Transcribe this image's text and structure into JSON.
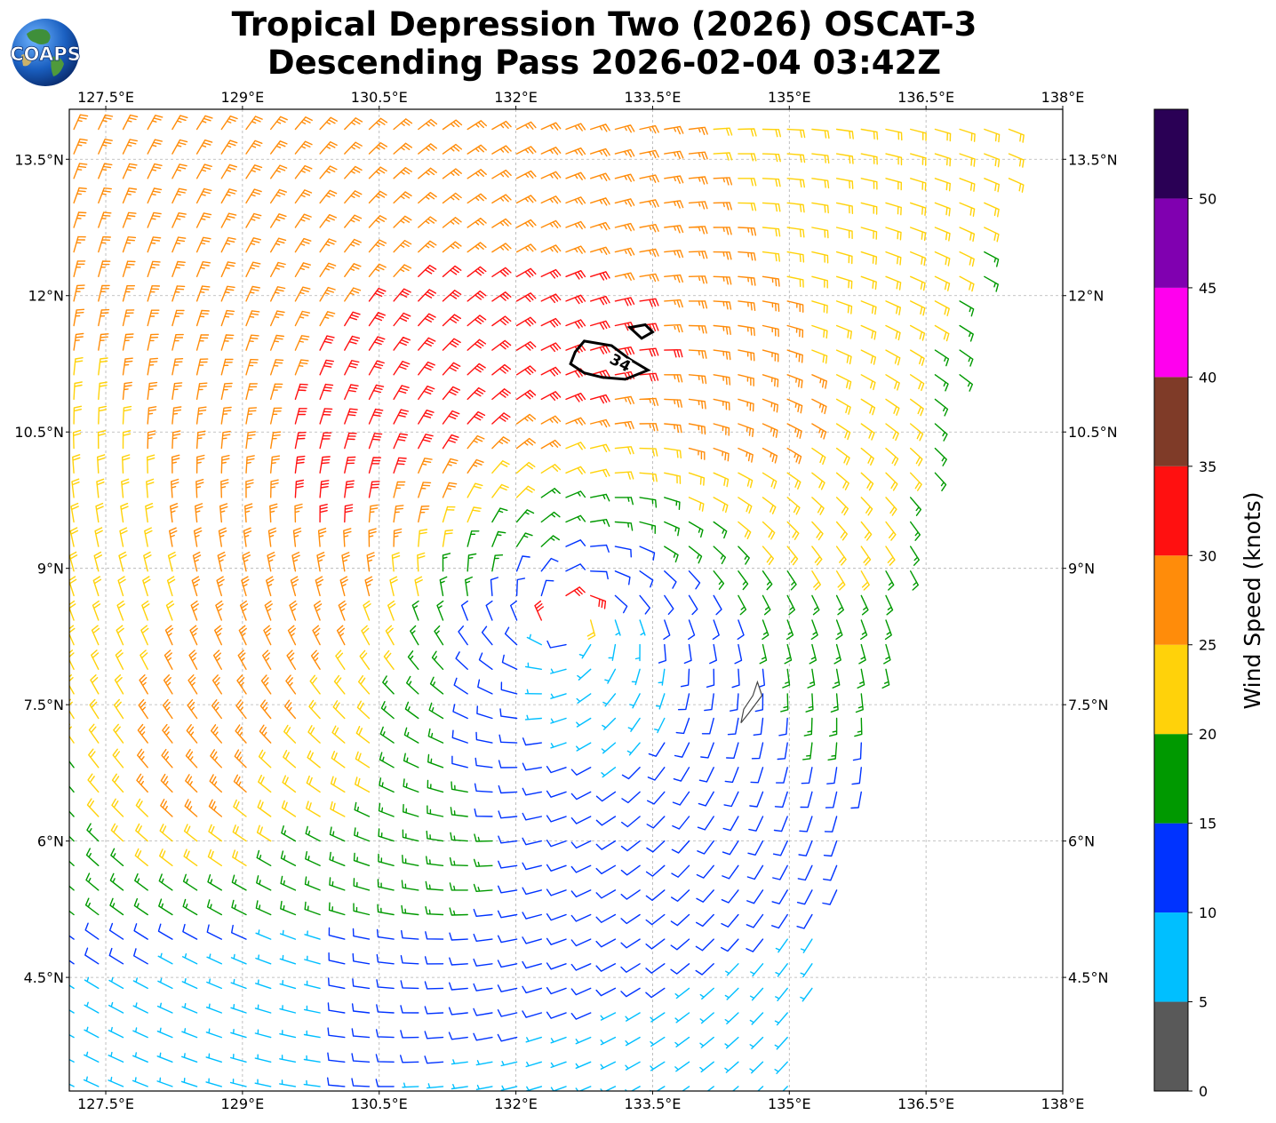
{
  "header": {
    "title_line1": "Tropical Depression Two (2026) OSCAT-3",
    "title_line2": "Descending Pass 2026-02-04 03:42Z",
    "logo_text": "COAPS"
  },
  "map": {
    "lon_range": [
      127.1,
      138.0
    ],
    "lat_range": [
      3.25,
      14.05
    ],
    "lon_ticks": [
      {
        "value": 127.5,
        "label": "127.5°E"
      },
      {
        "value": 129.0,
        "label": "129°E"
      },
      {
        "value": 130.5,
        "label": "130.5°E"
      },
      {
        "value": 132.0,
        "label": "132°E"
      },
      {
        "value": 133.5,
        "label": "133.5°E"
      },
      {
        "value": 135.0,
        "label": "135°E"
      },
      {
        "value": 136.5,
        "label": "136.5°E"
      },
      {
        "value": 138.0,
        "label": "138°E"
      }
    ],
    "lat_ticks": [
      {
        "value": 4.5,
        "label": "4.5°N"
      },
      {
        "value": 6.0,
        "label": "6°N"
      },
      {
        "value": 7.5,
        "label": "7.5°N"
      },
      {
        "value": 9.0,
        "label": "9°N"
      },
      {
        "value": 10.5,
        "label": "10.5°N"
      },
      {
        "value": 12.0,
        "label": "12°N"
      },
      {
        "value": 13.5,
        "label": "13.5°N"
      }
    ],
    "gridlines": true,
    "storm_center": {
      "lon": 132.6,
      "lat": 8.45
    },
    "swath_edge": [
      {
        "lon": 135.0,
        "lat": 3.25
      },
      {
        "lon": 137.6,
        "lat": 14.05
      }
    ],
    "wind_contour_label": "34",
    "wind_contour_34kt": [
      {
        "lon": 132.75,
        "lat": 11.5
      },
      {
        "lon": 133.05,
        "lat": 11.45
      },
      {
        "lon": 133.25,
        "lat": 11.3
      },
      {
        "lon": 133.45,
        "lat": 11.18
      },
      {
        "lon": 133.2,
        "lat": 11.08
      },
      {
        "lon": 132.95,
        "lat": 11.1
      },
      {
        "lon": 132.75,
        "lat": 11.15
      },
      {
        "lon": 132.6,
        "lat": 11.25
      },
      {
        "lon": 132.65,
        "lat": 11.38
      }
    ],
    "wind_contour_34kt_small": [
      {
        "lon": 133.25,
        "lat": 11.65
      },
      {
        "lon": 133.42,
        "lat": 11.68
      },
      {
        "lon": 133.5,
        "lat": 11.6
      },
      {
        "lon": 133.38,
        "lat": 11.53
      }
    ],
    "island": [
      {
        "lon": 134.65,
        "lat": 7.75
      },
      {
        "lon": 134.7,
        "lat": 7.6
      },
      {
        "lon": 134.55,
        "lat": 7.4
      },
      {
        "lon": 134.47,
        "lat": 7.3
      },
      {
        "lon": 134.5,
        "lat": 7.45
      },
      {
        "lon": 134.6,
        "lat": 7.6
      }
    ]
  },
  "colorbar": {
    "label": "Wind Speed (knots)",
    "range": [
      0,
      55
    ],
    "bands": [
      {
        "from": 0,
        "to": 5,
        "color": "#595959"
      },
      {
        "from": 5,
        "to": 10,
        "color": "#00bfff"
      },
      {
        "from": 10,
        "to": 15,
        "color": "#0033ff"
      },
      {
        "from": 15,
        "to": 20,
        "color": "#009900"
      },
      {
        "from": 20,
        "to": 25,
        "color": "#ffd20a"
      },
      {
        "from": 25,
        "to": 30,
        "color": "#ff8c0a"
      },
      {
        "from": 30,
        "to": 35,
        "color": "#ff1010"
      },
      {
        "from": 35,
        "to": 40,
        "color": "#7f3b28"
      },
      {
        "from": 40,
        "to": 45,
        "color": "#ff00ee"
      },
      {
        "from": 45,
        "to": 50,
        "color": "#8000b0"
      },
      {
        "from": 50,
        "to": 55,
        "color": "#2a0055"
      }
    ],
    "ticks": [
      {
        "value": 0,
        "label": "0"
      },
      {
        "value": 5,
        "label": "5"
      },
      {
        "value": 10,
        "label": "10"
      },
      {
        "value": 15,
        "label": "15"
      },
      {
        "value": 20,
        "label": "20"
      },
      {
        "value": 25,
        "label": "25"
      },
      {
        "value": 30,
        "label": "30"
      },
      {
        "value": 35,
        "label": "35"
      },
      {
        "value": 40,
        "label": "40"
      },
      {
        "value": 45,
        "label": "45"
      },
      {
        "value": 50,
        "label": "50"
      }
    ]
  }
}
